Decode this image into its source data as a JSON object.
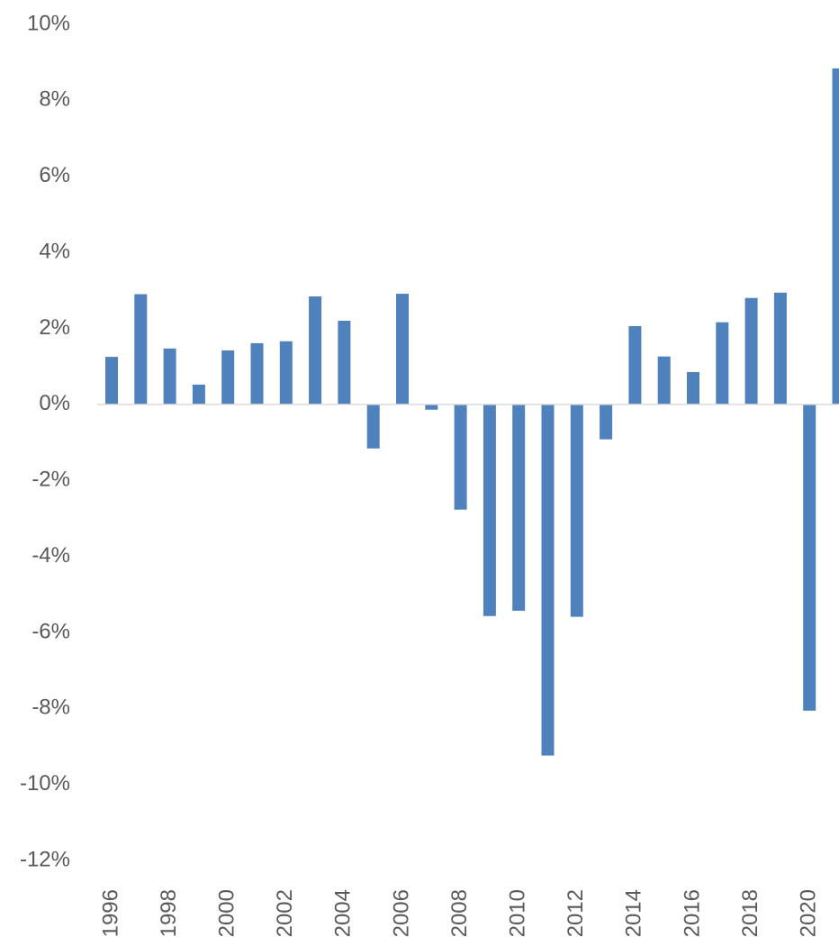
{
  "chart_data": {
    "type": "bar",
    "categories": [
      "1996",
      null,
      "1998",
      null,
      "2000",
      null,
      "2002",
      null,
      "2004",
      null,
      "2006",
      null,
      "2008",
      null,
      "2010",
      null,
      "2012",
      null,
      "2014",
      null,
      "2016",
      null,
      "2018",
      null,
      "2020",
      null
    ],
    "values": [
      1.25,
      2.9,
      1.47,
      0.52,
      1.42,
      1.61,
      1.66,
      2.84,
      2.2,
      -1.16,
      2.91,
      -0.14,
      -2.77,
      -5.57,
      -5.43,
      -9.24,
      -5.59,
      -0.92,
      2.06,
      1.26,
      0.85,
      2.16,
      2.8,
      2.94,
      -8.06,
      8.84
    ],
    "color": "#4f81bd",
    "ylim": [
      -12,
      10
    ],
    "yticks": [
      {
        "value": -12,
        "label": "-12%"
      },
      {
        "value": -10,
        "label": "-10%"
      },
      {
        "value": -8,
        "label": "-8%"
      },
      {
        "value": -6,
        "label": "-6%"
      },
      {
        "value": -4,
        "label": "-4%"
      },
      {
        "value": -2,
        "label": "-2%"
      },
      {
        "value": 0,
        "label": "0%"
      },
      {
        "value": 2,
        "label": "2%"
      },
      {
        "value": 4,
        "label": "4%"
      },
      {
        "value": 6,
        "label": "6%"
      },
      {
        "value": 8,
        "label": "8%"
      },
      {
        "value": 10,
        "label": "10%"
      }
    ],
    "grid": false
  }
}
